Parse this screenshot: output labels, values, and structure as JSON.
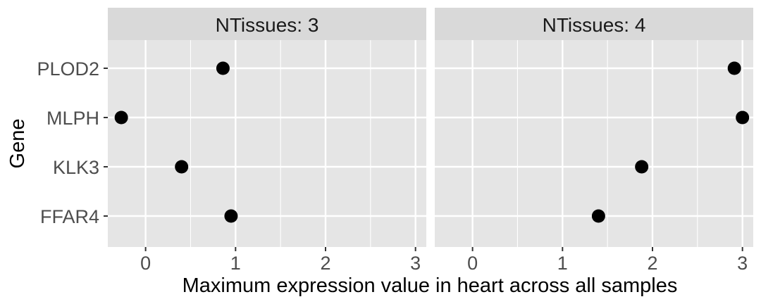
{
  "chart_data": {
    "type": "scatter",
    "xlabel": "Maximum expression value in heart across all samples",
    "ylabel": "Gene",
    "categories": [
      "FFAR4",
      "KLK3",
      "MLPH",
      "PLOD2"
    ],
    "xlim": [
      -0.42,
      3.12
    ],
    "x_ticks": [
      "0",
      "1",
      "2",
      "3"
    ],
    "grid": true,
    "legend": "none",
    "colors": {
      "panel_bg": "#e5e5e5",
      "strip_bg": "#d9d9d9",
      "grid": "#ffffff",
      "point": "#000000"
    },
    "facets": [
      {
        "label": "NTissues: 3",
        "points": [
          {
            "gene": "PLOD2",
            "x": 0.86
          },
          {
            "gene": "MLPH",
            "x": -0.27
          },
          {
            "gene": "KLK3",
            "x": 0.4
          },
          {
            "gene": "FFAR4",
            "x": 0.95
          }
        ]
      },
      {
        "label": "NTissues: 4",
        "points": [
          {
            "gene": "PLOD2",
            "x": 2.91
          },
          {
            "gene": "MLPH",
            "x": 3.0
          },
          {
            "gene": "KLK3",
            "x": 1.88
          },
          {
            "gene": "FFAR4",
            "x": 1.4
          }
        ]
      }
    ]
  }
}
